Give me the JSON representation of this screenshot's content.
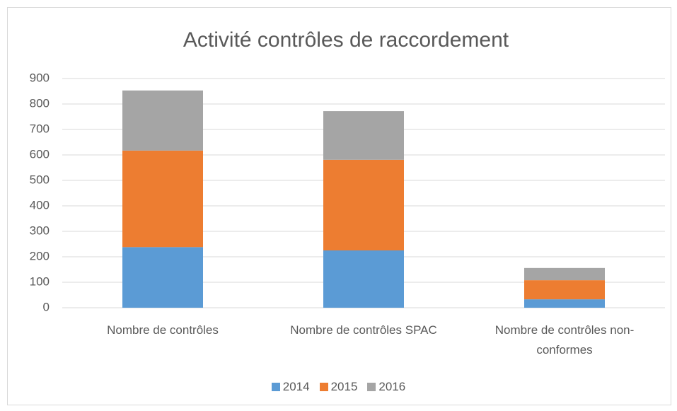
{
  "chart_data": {
    "type": "stacked_bar",
    "title": "Activité contrôles de raccordement",
    "categories": [
      "Nombre de contrôles",
      "Nombre de contrôles SPAC",
      "Nombre de contrôles non-conformes"
    ],
    "series": [
      {
        "name": "2014",
        "color": "#5b9bd5",
        "values": [
          238,
          225,
          33
        ]
      },
      {
        "name": "2015",
        "color": "#ed7d31",
        "values": [
          379,
          356,
          75
        ]
      },
      {
        "name": "2016",
        "color": "#a5a5a5",
        "values": [
          236,
          191,
          48
        ]
      }
    ],
    "ylim": [
      0,
      900
    ],
    "yticks": [
      0,
      100,
      200,
      300,
      400,
      500,
      600,
      700,
      800,
      900
    ],
    "grid": true,
    "legend": "bottom"
  }
}
